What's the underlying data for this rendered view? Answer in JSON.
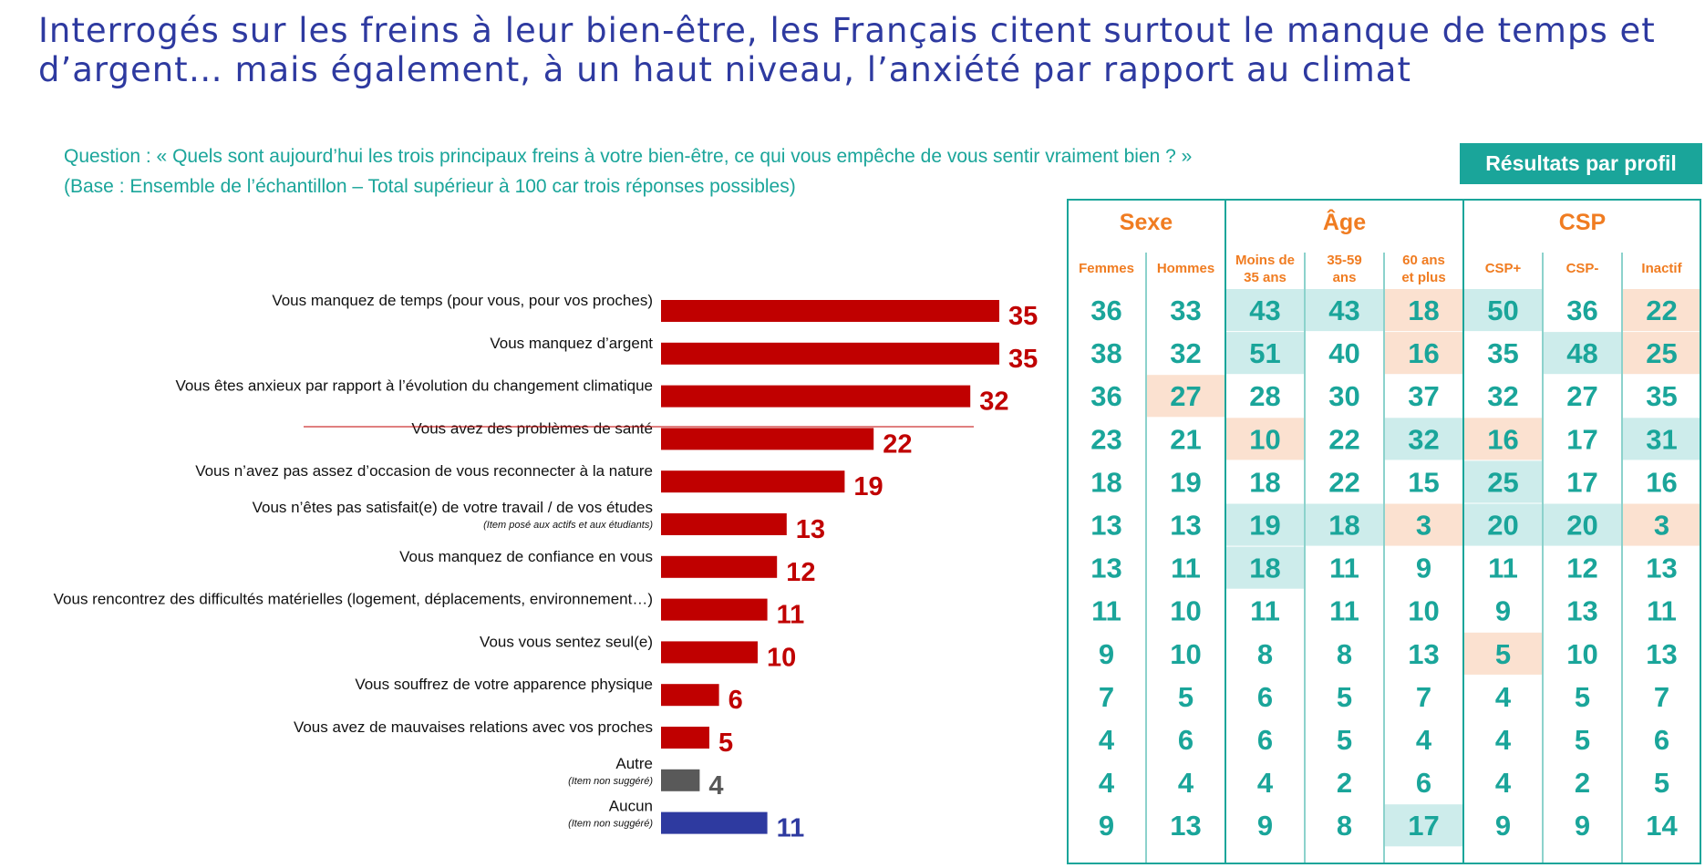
{
  "title": "Interrogés sur les freins à leur bien-être, les Français citent surtout le manque de temps et d’argent… mais également, à un haut niveau, l’anxiété par rapport au climat",
  "question_line1": "Question : « Quels sont aujourd’hui les trois principaux freins à votre bien-être, ce qui vous empêche de vous sentir vraiment bien ? »",
  "question_line2": "(Base : Ensemble de l’échantillon – Total supérieur à 100 car trois réponses possibles)",
  "badge": "Résultats par profil",
  "colors": {
    "title": "#2e3aa0",
    "accent_teal": "#1aa59a",
    "orange": "#f07c21",
    "bar_red": "#c00000",
    "bar_grey": "#595959",
    "bar_blue": "#2e3aa0",
    "highlight_high": "#cdeceb",
    "highlight_low": "#fbe1d0"
  },
  "chart_data": [
    {
      "type": "bar",
      "orientation": "horizontal",
      "categories": [
        "Vous manquez de temps (pour vous, pour vos proches)",
        "Vous manquez d’argent",
        "Vous êtes anxieux par rapport à l’évolution du changement climatique",
        "Vous avez des problèmes de santé",
        "Vous n’avez pas assez d’occasion de vous reconnecter à la nature",
        "Vous n’êtes pas satisfait(e) de votre travail / de vos études",
        "Vous manquez de confiance en vous",
        "Vous rencontrez des difficultés matérielles (logement, déplacements, environnement…)",
        "Vous vous sentez seul(e)",
        "Vous souffrez de votre apparence physique",
        "Vous avez de mauvaises relations avec vos proches",
        "Autre",
        "Aucun"
      ],
      "notes": [
        "",
        "",
        "",
        "",
        "",
        "(Item posé aux actifs et aux étudiants)",
        "",
        "",
        "",
        "",
        "",
        "(Item non suggéré)",
        "(Item non suggéré)"
      ],
      "values": [
        35,
        35,
        32,
        22,
        19,
        13,
        12,
        11,
        10,
        6,
        5,
        4,
        11
      ],
      "bar_colors": [
        "#c00000",
        "#c00000",
        "#c00000",
        "#c00000",
        "#c00000",
        "#c00000",
        "#c00000",
        "#c00000",
        "#c00000",
        "#c00000",
        "#c00000",
        "#595959",
        "#2e3aa0"
      ]
    },
    {
      "type": "table",
      "groups": [
        {
          "label": "Sexe",
          "columns": [
            "Femmes",
            "Hommes"
          ]
        },
        {
          "label": "Âge",
          "columns": [
            "Moins de 35 ans",
            "35-59 ans",
            "60 ans et plus"
          ]
        },
        {
          "label": "CSP",
          "columns": [
            "CSP+",
            "CSP-",
            "Inactif"
          ]
        }
      ],
      "rows": [
        [
          36,
          33,
          43,
          43,
          18,
          50,
          36,
          22
        ],
        [
          38,
          32,
          51,
          40,
          16,
          35,
          48,
          25
        ],
        [
          36,
          27,
          28,
          30,
          37,
          32,
          27,
          35
        ],
        [
          23,
          21,
          10,
          22,
          32,
          16,
          17,
          31
        ],
        [
          18,
          19,
          18,
          22,
          15,
          25,
          17,
          16
        ],
        [
          13,
          13,
          19,
          18,
          3,
          20,
          20,
          3
        ],
        [
          13,
          11,
          18,
          11,
          9,
          11,
          12,
          13
        ],
        [
          11,
          10,
          11,
          11,
          10,
          9,
          13,
          11
        ],
        [
          9,
          10,
          8,
          8,
          13,
          5,
          10,
          13
        ],
        [
          7,
          5,
          6,
          5,
          7,
          4,
          5,
          7
        ],
        [
          4,
          6,
          6,
          5,
          4,
          4,
          5,
          6
        ],
        [
          4,
          4,
          4,
          2,
          6,
          4,
          2,
          5
        ],
        [
          9,
          13,
          9,
          8,
          17,
          9,
          9,
          14
        ]
      ],
      "highlights": [
        [
          "",
          "",
          "high",
          "high",
          "low",
          "high",
          "",
          "low"
        ],
        [
          "",
          "",
          "high",
          "",
          "low",
          "",
          "high",
          "low"
        ],
        [
          "",
          "low",
          "",
          "",
          "",
          "",
          "",
          ""
        ],
        [
          "",
          "",
          "low",
          "",
          "high",
          "low",
          "",
          "high"
        ],
        [
          "",
          "",
          "",
          "",
          "",
          "high",
          "",
          ""
        ],
        [
          "",
          "",
          "high",
          "high",
          "low",
          "high",
          "high",
          "low"
        ],
        [
          "",
          "",
          "high",
          "",
          "",
          "",
          "",
          ""
        ],
        [
          "",
          "",
          "",
          "",
          "",
          "",
          "",
          ""
        ],
        [
          "",
          "",
          "",
          "",
          "",
          "low",
          "",
          ""
        ],
        [
          "",
          "",
          "",
          "",
          "",
          "",
          "",
          ""
        ],
        [
          "",
          "",
          "",
          "",
          "",
          "",
          "",
          ""
        ],
        [
          "",
          "",
          "",
          "",
          "",
          "",
          "",
          ""
        ],
        [
          "",
          "",
          "",
          "",
          "high",
          "",
          "",
          ""
        ]
      ]
    }
  ]
}
